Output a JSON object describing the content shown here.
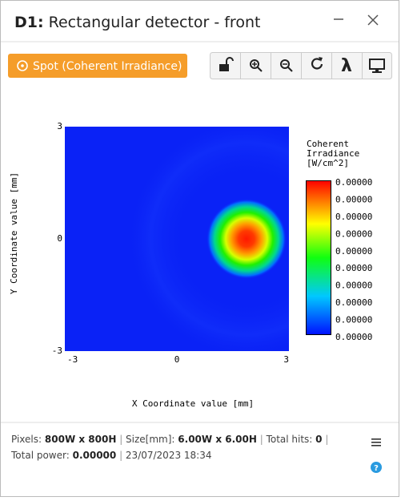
{
  "window": {
    "id": "D1:",
    "title": "Rectangular detector - front"
  },
  "toolbar": {
    "mode_button": "Spot (Coherent Irradiance)",
    "wavelength_button": "λ"
  },
  "plot": {
    "type": "heatmap",
    "xlabel": "X Coordinate value [mm]",
    "ylabel": "Y Coordinate value [mm]",
    "xlim": [
      -3,
      3
    ],
    "ylim": [
      -3,
      3
    ],
    "xticks": [
      -3,
      0,
      3
    ],
    "yticks": [
      -3,
      0,
      3
    ],
    "colorbar": {
      "title": [
        "Coherent",
        "Irradiance",
        "[W/cm^2]"
      ],
      "labels": [
        "0.00000",
        "0.00000",
        "0.00000",
        "0.00000",
        "0.00000",
        "0.00000",
        "0.00000",
        "0.00000",
        "0.00000",
        "0.00000"
      ]
    }
  },
  "status": {
    "pixels_label": "Pixels:",
    "pixels": "800W x 800H",
    "size_label": "Size[mm]:",
    "size": "6.00W x 6.00H",
    "hits_label": "Total hits:",
    "hits": "0",
    "power_label": "Total power:",
    "power": "0.00000",
    "timestamp": "23/07/2023 18:34",
    "help": "?"
  }
}
